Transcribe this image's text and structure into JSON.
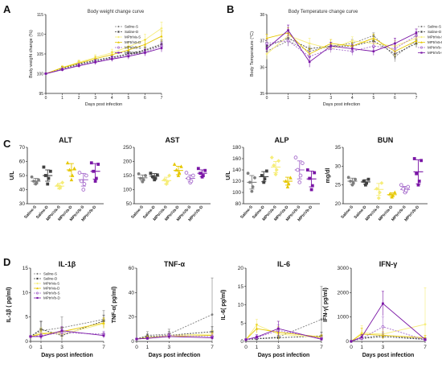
{
  "figure": {
    "panel_labels": [
      "A",
      "B",
      "C",
      "D"
    ]
  },
  "group_names": [
    "Saline-S",
    "Saline-D",
    "MPtriVa-S",
    "MPtriVa-D",
    "MPtriVb-S",
    "MPtriVb-D"
  ],
  "colors": {
    "Saline-S": "#7f7f7f",
    "Saline-D": "#404040",
    "MPtriVa-S": "#f6ed7a",
    "MPtriVa-D": "#e6c700",
    "MPtriVb-S": "#a66bcc",
    "MPtriVb-D": "#7a16a6"
  },
  "chart_data": [
    {
      "id": "A",
      "type": "line",
      "title": "Body weight change curve",
      "xlabel": "Days post infection",
      "ylabel": "Body weight change (%)",
      "x": [
        0,
        1,
        2,
        3,
        4,
        5,
        6,
        7
      ],
      "xlim": [
        0,
        7
      ],
      "ylim": [
        95,
        115
      ],
      "yticks": [
        95,
        100,
        105,
        110,
        115
      ],
      "legend": "top-left",
      "series": [
        {
          "name": "Saline-S",
          "values": [
            100,
            101.2,
            102.3,
            103.2,
            104.0,
            104.8,
            105.8,
            107.2
          ],
          "err": [
            0.2,
            0.4,
            0.5,
            0.5,
            0.6,
            0.7,
            0.8,
            1.0
          ]
        },
        {
          "name": "Saline-D",
          "values": [
            100,
            101.4,
            102.5,
            103.4,
            104.2,
            105.0,
            106.0,
            107.5
          ],
          "err": [
            0.2,
            0.4,
            0.5,
            0.5,
            0.6,
            0.7,
            0.8,
            1.0
          ]
        },
        {
          "name": "MPtriVa-S",
          "values": [
            100,
            101.6,
            102.9,
            104.1,
            105.3,
            106.8,
            108.6,
            111.5
          ],
          "err": [
            0.2,
            0.5,
            0.6,
            0.7,
            0.9,
            1.1,
            1.4,
            1.6
          ]
        },
        {
          "name": "MPtriVa-D",
          "values": [
            100,
            101.5,
            102.7,
            103.8,
            104.8,
            106.0,
            107.4,
            109.5
          ],
          "err": [
            0.2,
            0.4,
            0.5,
            0.6,
            0.8,
            1.0,
            1.2,
            1.4
          ]
        },
        {
          "name": "MPtriVb-S",
          "values": [
            100,
            101.1,
            102.1,
            103.0,
            103.9,
            104.7,
            105.5,
            107.0
          ],
          "err": [
            0.2,
            0.4,
            0.5,
            0.6,
            0.6,
            0.7,
            0.8,
            1.0
          ]
        },
        {
          "name": "MPtriVb-D",
          "values": [
            100,
            101.0,
            102.0,
            102.9,
            103.7,
            104.4,
            105.3,
            106.5
          ],
          "err": [
            0.2,
            0.4,
            0.5,
            0.6,
            0.6,
            0.7,
            0.8,
            1.0
          ]
        }
      ]
    },
    {
      "id": "B",
      "type": "line",
      "title": "Body Temperature change curve",
      "xlabel": "Days post infection",
      "ylabel": "Body Temperature (°C)",
      "x": [
        0,
        1,
        2,
        3,
        4,
        5,
        6,
        7
      ],
      "xlim": [
        0,
        7
      ],
      "ylim": [
        35,
        38
      ],
      "yticks": [
        35,
        36,
        37,
        38
      ],
      "legend": "top-right",
      "series": [
        {
          "name": "Saline-S",
          "values": [
            36.6,
            37.0,
            36.6,
            36.8,
            36.9,
            37.2,
            36.4,
            37.0
          ],
          "err": [
            0.15,
            0.2,
            0.2,
            0.15,
            0.15,
            0.1,
            0.2,
            0.15
          ]
        },
        {
          "name": "Saline-D",
          "values": [
            36.8,
            37.1,
            36.7,
            36.8,
            36.8,
            37.0,
            36.5,
            36.9
          ],
          "err": [
            0.15,
            0.2,
            0.2,
            0.15,
            0.15,
            0.15,
            0.2,
            0.15
          ]
        },
        {
          "name": "MPtriVa-S",
          "values": [
            36.5,
            37.2,
            36.9,
            36.7,
            37.0,
            36.9,
            36.8,
            37.1
          ],
          "err": [
            0.2,
            0.2,
            0.2,
            0.15,
            0.15,
            0.15,
            0.2,
            0.15
          ]
        },
        {
          "name": "MPtriVa-D",
          "values": [
            37.1,
            37.3,
            36.5,
            36.9,
            36.8,
            37.1,
            36.6,
            37.0
          ],
          "err": [
            0.15,
            0.2,
            0.2,
            0.15,
            0.15,
            0.15,
            0.2,
            0.15
          ]
        },
        {
          "name": "MPtriVb-S",
          "values": [
            36.9,
            37.0,
            36.4,
            36.7,
            36.6,
            36.8,
            36.7,
            37.2
          ],
          "err": [
            0.15,
            0.2,
            0.2,
            0.15,
            0.15,
            0.15,
            0.2,
            0.15
          ]
        },
        {
          "name": "MPtriVb-D",
          "values": [
            36.7,
            37.4,
            36.2,
            36.8,
            36.7,
            36.6,
            36.9,
            37.3
          ],
          "err": [
            0.15,
            0.2,
            0.2,
            0.15,
            0.15,
            0.15,
            0.2,
            0.15
          ]
        }
      ]
    },
    {
      "id": "ALT",
      "type": "scatter",
      "title": "ALT",
      "ylabel": "U/L",
      "categories": [
        "Saline-S",
        "Saline-D",
        "MPtriVa-S",
        "MPtriVa-D",
        "MPtriVb-S",
        "MPtriVb-D"
      ],
      "ylim": [
        30,
        70
      ],
      "yticks": [
        30,
        40,
        50,
        60,
        70
      ],
      "points": [
        [
          44,
          45,
          46,
          47,
          49
        ],
        [
          44,
          48,
          50,
          53,
          56
        ],
        [
          41,
          42,
          43,
          45
        ],
        [
          47,
          50,
          54,
          55,
          59
        ],
        [
          40,
          44,
          46,
          50,
          52
        ],
        [
          46,
          48,
          53,
          58,
          59
        ]
      ],
      "mean": [
        46,
        50,
        42.5,
        54,
        47,
        53
      ],
      "sd": [
        2,
        4,
        2,
        4.5,
        4.5,
        5.5
      ]
    },
    {
      "id": "AST",
      "type": "scatter",
      "title": "AST",
      "ylabel": "",
      "categories": [
        "Saline-S",
        "Saline-D",
        "MPtriVa-S",
        "MPtriVa-D",
        "MPtriVb-S",
        "MPtriVb-D"
      ],
      "ylim": [
        50,
        250
      ],
      "yticks": [
        50,
        100,
        150,
        200,
        250
      ],
      "points": [
        [
          128,
          135,
          140,
          150,
          156
        ],
        [
          135,
          140,
          146,
          152,
          158
        ],
        [
          120,
          128,
          135,
          150
        ],
        [
          150,
          160,
          170,
          182,
          190
        ],
        [
          125,
          130,
          140,
          150,
          160
        ],
        [
          145,
          150,
          158,
          168,
          175
        ]
      ],
      "mean": [
        142,
        148,
        132,
        168,
        140,
        158
      ],
      "sd": [
        10,
        9,
        12,
        15,
        12,
        12
      ]
    },
    {
      "id": "ALP",
      "type": "scatter",
      "title": "ALP",
      "ylabel": "U/L",
      "categories": [
        "Saline-S",
        "Saline-D",
        "MPtriVa-S",
        "MPtriVa-D",
        "MPtriVb-S",
        "MPtriVb-D"
      ],
      "ylim": [
        80,
        180
      ],
      "yticks": [
        80,
        100,
        120,
        140,
        160,
        180
      ],
      "points": [
        [
          102,
          110,
          118,
          126,
          134
        ],
        [
          118,
          124,
          130,
          138
        ],
        [
          132,
          140,
          148,
          156,
          162
        ],
        [
          110,
          116,
          120,
          126
        ],
        [
          118,
          130,
          140,
          152,
          162
        ],
        [
          105,
          112,
          125,
          135,
          140
        ]
      ],
      "mean": [
        118,
        128,
        145,
        120,
        140,
        124
      ],
      "sd": [
        12,
        9,
        10,
        7,
        16,
        14
      ]
    },
    {
      "id": "BUN",
      "type": "scatter",
      "title": "BUN",
      "ylabel": "mg/dl",
      "categories": [
        "Saline-S",
        "Saline-D",
        "MPtriVa-S",
        "MPtriVa-D",
        "MPtriVb-S",
        "MPtriVb-D"
      ],
      "ylim": [
        20,
        35
      ],
      "yticks": [
        20,
        25,
        30,
        35
      ],
      "points": [
        [
          25,
          25.5,
          26,
          26.5,
          27
        ],
        [
          25,
          25.5,
          26,
          26.5
        ],
        [
          21.5,
          23,
          24,
          25.5
        ],
        [
          21.8,
          22.2,
          22.6,
          23
        ],
        [
          23,
          23.5,
          24,
          24.5,
          25
        ],
        [
          25,
          26,
          28,
          31.5,
          32
        ]
      ],
      "mean": [
        26,
        25.8,
        23.8,
        22.4,
        23.8,
        28.5
      ],
      "sd": [
        0.8,
        0.6,
        1.6,
        0.5,
        0.8,
        3.2
      ]
    },
    {
      "id": "IL-1β",
      "type": "line",
      "title": "IL-1β",
      "xlabel": "Days post infection",
      "ylabel": "IL-1β ( pg/ml)",
      "x": [
        0,
        1,
        3,
        7
      ],
      "xlim": [
        0,
        7
      ],
      "ylim": [
        0,
        15
      ],
      "yticks": [
        0,
        5,
        10,
        15
      ],
      "legend": "top-left",
      "series": [
        {
          "name": "Saline-S",
          "values": [
            1.0,
            2.2,
            2.8,
            4.5
          ],
          "err": [
            0.2,
            2.0,
            2.2,
            1.8
          ]
        },
        {
          "name": "Saline-D",
          "values": [
            1.0,
            2.5,
            1.2,
            4.2
          ],
          "err": [
            0.2,
            1.5,
            1.0,
            1.2
          ]
        },
        {
          "name": "MPtriVa-S",
          "values": [
            1.0,
            1.8,
            1.5,
            3.6
          ],
          "err": [
            0.2,
            1.0,
            0.8,
            1.0
          ]
        },
        {
          "name": "MPtriVa-D",
          "values": [
            1.0,
            1.5,
            2.0,
            3.8
          ],
          "err": [
            0.2,
            0.8,
            1.0,
            1.0
          ]
        },
        {
          "name": "MPtriVb-S",
          "values": [
            1.0,
            1.2,
            1.8,
            1.5
          ],
          "err": [
            0.2,
            0.6,
            0.8,
            0.6
          ]
        },
        {
          "name": "MPtriVb-D",
          "values": [
            1.0,
            1.0,
            2.2,
            1.2
          ],
          "err": [
            0.2,
            0.5,
            0.8,
            0.5
          ]
        }
      ]
    },
    {
      "id": "TNF-α",
      "type": "line",
      "title": "TNF-α",
      "xlabel": "Days post infection",
      "ylabel": "TNF-α( pg/ml)",
      "x": [
        0,
        1,
        3,
        7
      ],
      "xlim": [
        0,
        7
      ],
      "ylim": [
        0,
        60
      ],
      "yticks": [
        0,
        20,
        40,
        60
      ],
      "series": [
        {
          "name": "Saline-S",
          "values": [
            2,
            5,
            6,
            22
          ],
          "err": [
            0.5,
            3,
            4,
            30
          ]
        },
        {
          "name": "Saline-D",
          "values": [
            2,
            4,
            5,
            8
          ],
          "err": [
            0.5,
            2,
            3,
            4
          ]
        },
        {
          "name": "MPtriVa-S",
          "values": [
            2,
            3,
            5,
            6
          ],
          "err": [
            0.5,
            1.5,
            2,
            3
          ]
        },
        {
          "name": "MPtriVa-D",
          "values": [
            2,
            3,
            4,
            5
          ],
          "err": [
            0.5,
            1.5,
            2,
            2
          ]
        },
        {
          "name": "MPtriVb-S",
          "values": [
            2,
            2.5,
            5,
            4
          ],
          "err": [
            0.5,
            1,
            2,
            2
          ]
        },
        {
          "name": "MPtriVb-D",
          "values": [
            2,
            2.5,
            4,
            3
          ],
          "err": [
            0.5,
            1,
            2,
            1.5
          ]
        }
      ]
    },
    {
      "id": "IL-6",
      "type": "line",
      "title": "IL-6",
      "xlabel": "Days post infection",
      "ylabel": "IL-6( pg/ml)",
      "x": [
        0,
        1,
        3,
        7
      ],
      "xlim": [
        0,
        7
      ],
      "ylim": [
        0,
        20
      ],
      "yticks": [
        0,
        5,
        10,
        15,
        20
      ],
      "series": [
        {
          "name": "Saline-S",
          "values": [
            0.5,
            0.8,
            1.2,
            6.0
          ],
          "err": [
            0.2,
            0.5,
            1.0,
            9.0
          ]
        },
        {
          "name": "Saline-D",
          "values": [
            0.5,
            0.7,
            1.0,
            1.5
          ],
          "err": [
            0.2,
            0.4,
            0.6,
            1.0
          ]
        },
        {
          "name": "MPtriVa-S",
          "values": [
            0.5,
            4.5,
            2.0,
            1.0
          ],
          "err": [
            0.2,
            1.5,
            1.5,
            0.5
          ]
        },
        {
          "name": "MPtriVa-D",
          "values": [
            0.5,
            3.5,
            2.5,
            1.2
          ],
          "err": [
            0.2,
            1.2,
            1.5,
            0.6
          ]
        },
        {
          "name": "MPtriVb-S",
          "values": [
            0.5,
            1.0,
            3.0,
            0.8
          ],
          "err": [
            0.2,
            0.5,
            1.5,
            0.4
          ]
        },
        {
          "name": "MPtriVb-D",
          "values": [
            0.5,
            1.2,
            3.5,
            0.6
          ],
          "err": [
            0.2,
            0.6,
            2.0,
            0.3
          ]
        }
      ]
    },
    {
      "id": "IFN-γ",
      "type": "line",
      "title": "IFN-γ",
      "xlabel": "Days post infection",
      "ylabel": "IFN-γ( pg/ml)",
      "x": [
        0,
        1,
        3,
        7
      ],
      "xlim": [
        0,
        7
      ],
      "ylim": [
        0,
        3000
      ],
      "yticks": [
        0,
        1000,
        2000,
        3000
      ],
      "series": [
        {
          "name": "Saline-S",
          "values": [
            5,
            150,
            250,
            100
          ],
          "err": [
            5,
            80,
            100,
            60
          ]
        },
        {
          "name": "Saline-D",
          "values": [
            5,
            120,
            200,
            80
          ],
          "err": [
            5,
            60,
            80,
            40
          ]
        },
        {
          "name": "MPtriVa-S",
          "values": [
            5,
            350,
            300,
            700
          ],
          "err": [
            5,
            300,
            200,
            1500
          ]
        },
        {
          "name": "MPtriVa-D",
          "values": [
            5,
            300,
            250,
            150
          ],
          "err": [
            5,
            250,
            150,
            100
          ]
        },
        {
          "name": "MPtriVb-S",
          "values": [
            5,
            120,
            600,
            60
          ],
          "err": [
            5,
            80,
            400,
            40
          ]
        },
        {
          "name": "MPtriVb-D",
          "values": [
            5,
            180,
            1550,
            80
          ],
          "err": [
            5,
            100,
            500,
            50
          ]
        }
      ]
    }
  ]
}
